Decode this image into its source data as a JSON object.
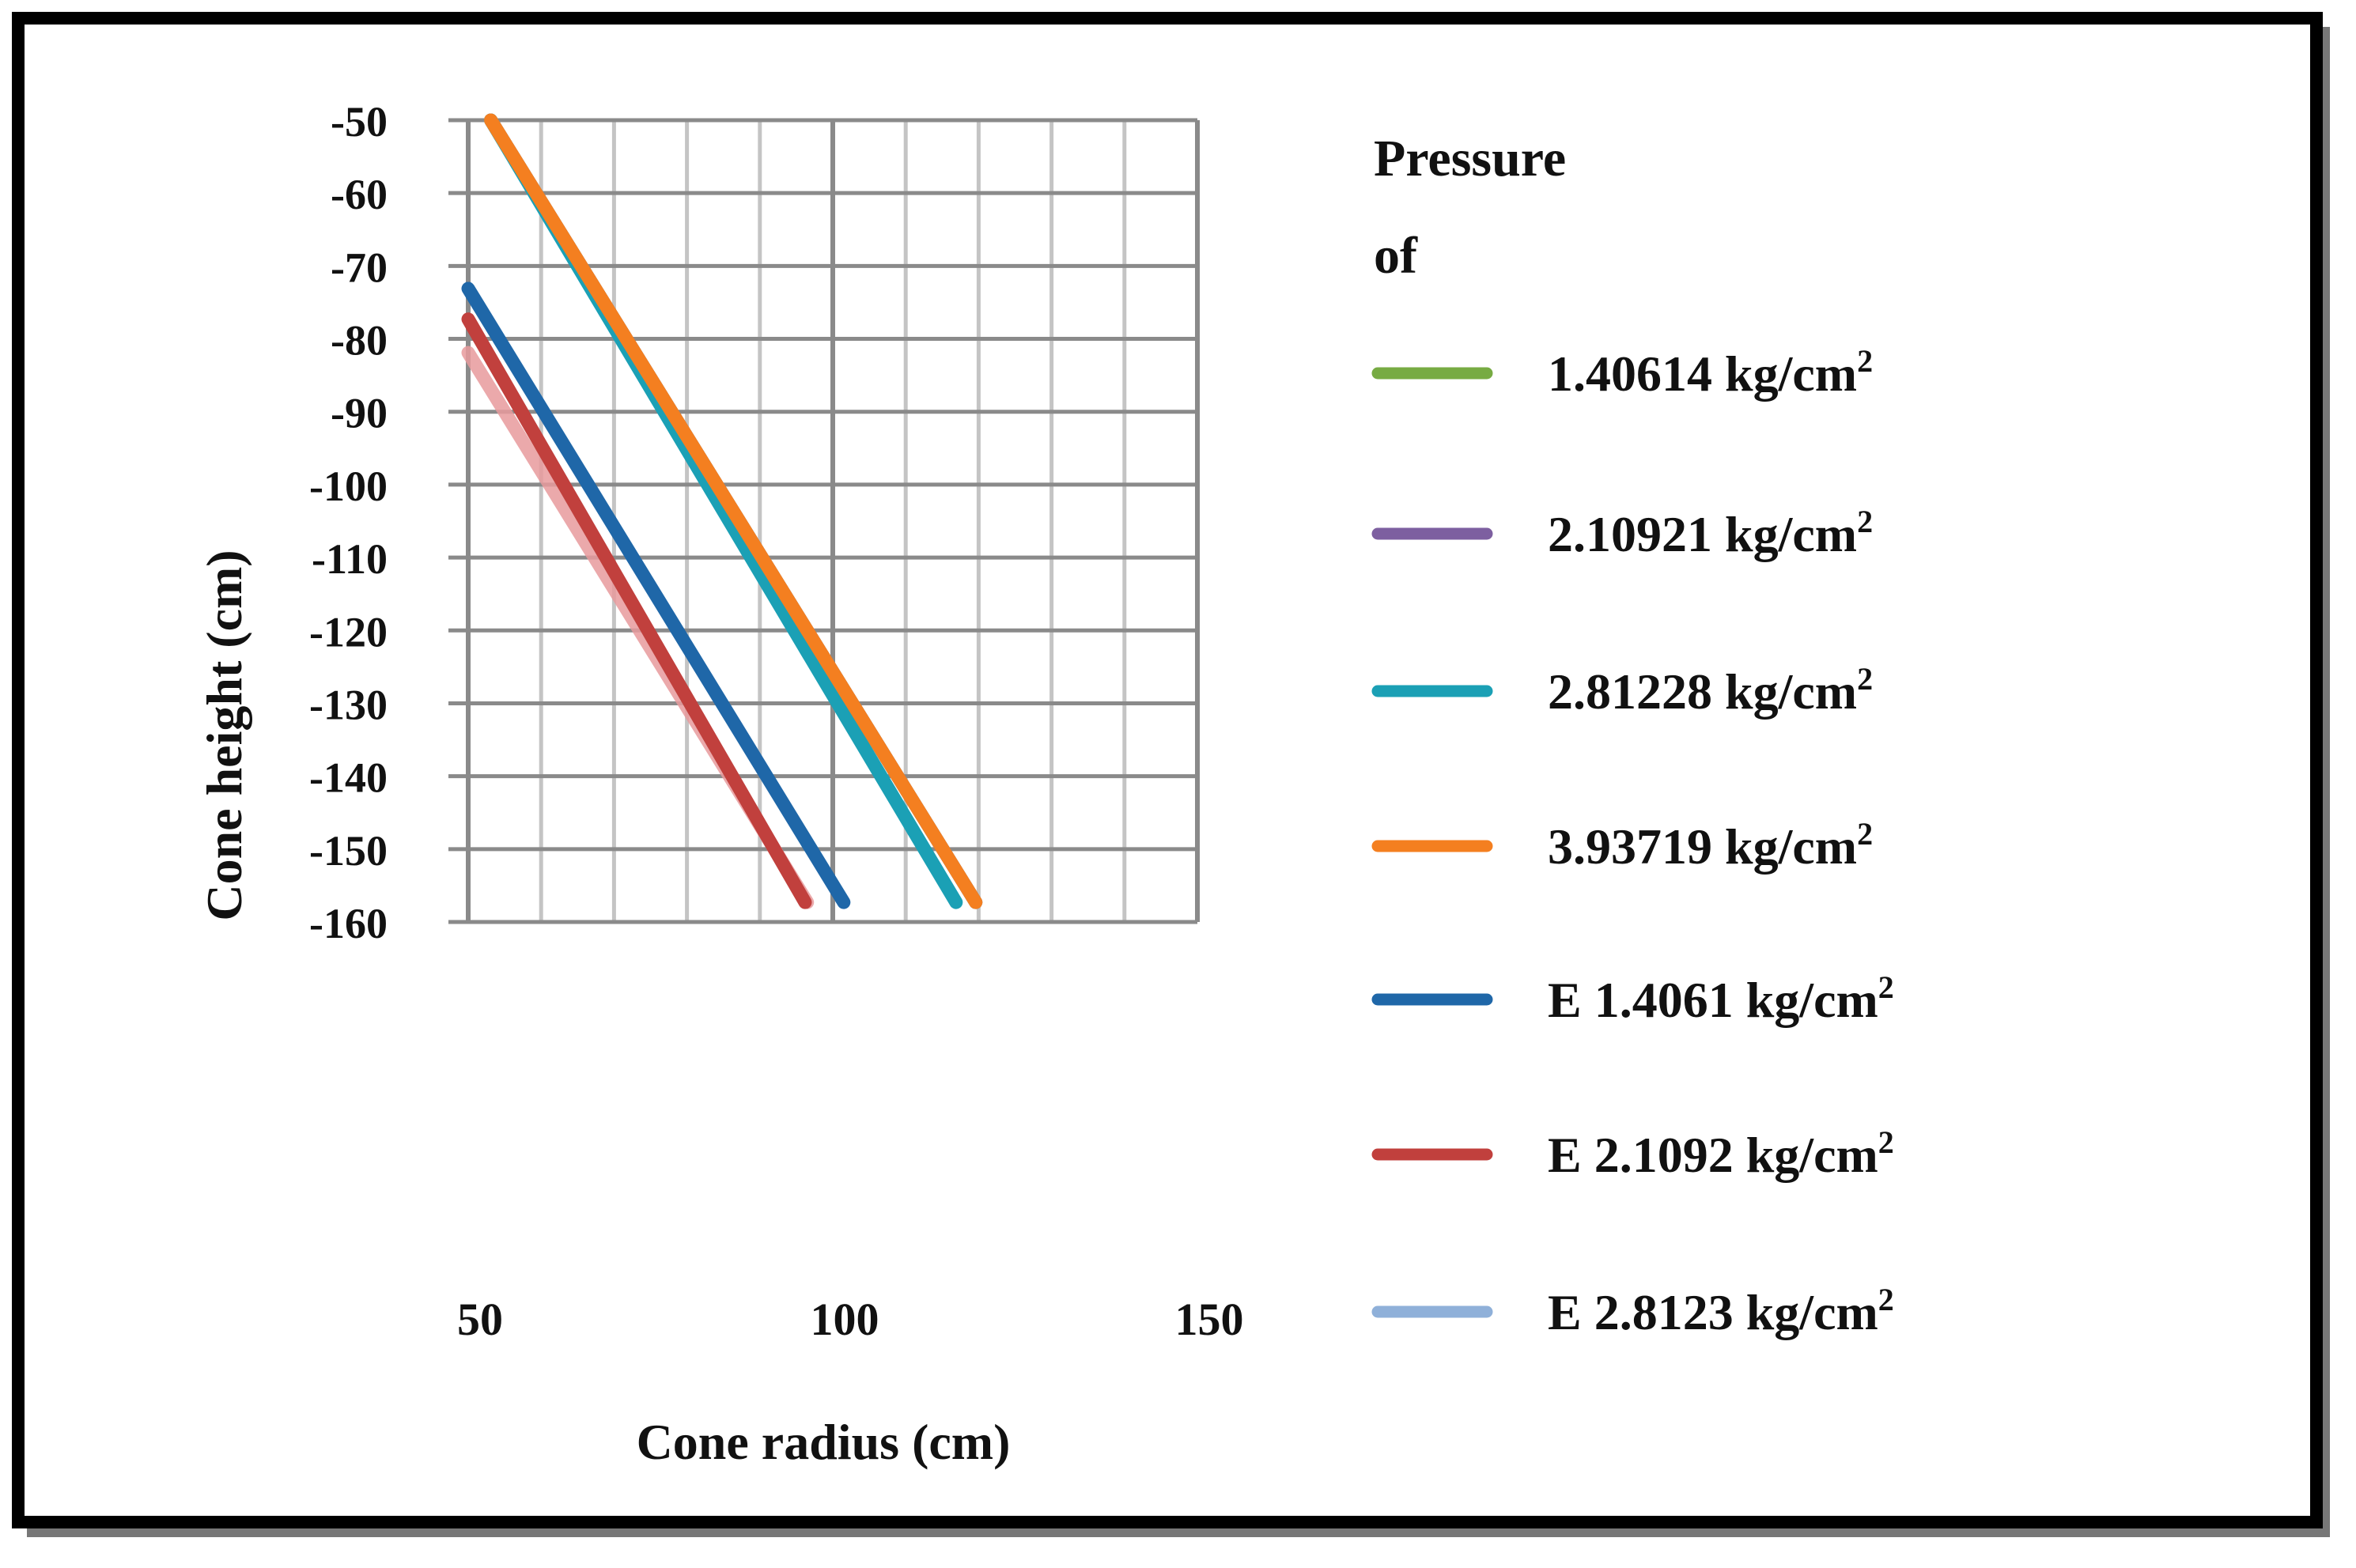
{
  "chart_data": {
    "type": "line",
    "title": "",
    "xlabel": "Cone radius (cm)",
    "ylabel": "Cone height (cm)",
    "xlim": [
      50,
      150
    ],
    "ylim": [
      -160,
      -50
    ],
    "xticks": [
      50,
      100,
      150
    ],
    "xtick_labels": [
      "50",
      "100",
      "150"
    ],
    "yticks": [
      -50,
      -60,
      -70,
      -80,
      -90,
      -100,
      -110,
      -120,
      -130,
      -140,
      -150,
      -160
    ],
    "ytick_labels": [
      "-50",
      "-60",
      "-70",
      "-80",
      "-90",
      "-100",
      "-110",
      "-120",
      "-130",
      "-140",
      "-150",
      "-160"
    ],
    "grid": true,
    "legend_title_lines": [
      "Pressure",
      "of"
    ],
    "legend_position": "right",
    "series": [
      {
        "name": "1.40614 kg/cm",
        "sup": "2",
        "color": "#77ab43",
        "legend_color": "#77ab43",
        "x": [
          53.1,
          119.6
        ],
        "y": [
          -50,
          -157.3
        ]
      },
      {
        "name": "2.10921 kg/cm",
        "sup": "2",
        "color": "#7d5fa0",
        "legend_color": "#7d5fa0",
        "x": [
          53.1,
          119.6
        ],
        "y": [
          -50,
          -157.3
        ]
      },
      {
        "name": "2.81228 kg/cm",
        "sup": "2",
        "color": "#1ba0b5",
        "legend_color": "#1ba0b5",
        "x": [
          53.1,
          116.9
        ],
        "y": [
          -50,
          -157.3
        ]
      },
      {
        "name": "3.93719 kg/cm",
        "sup": "2",
        "color": "#f47f20",
        "legend_color": "#f47f20",
        "x": [
          53.1,
          119.6
        ],
        "y": [
          -50,
          -157.3
        ]
      },
      {
        "name": "E 1.4061 kg/cm",
        "sup": "2",
        "color": "#1f67a8",
        "legend_color": "#1f67a8",
        "x": [
          50,
          101.5
        ],
        "y": [
          -73.1,
          -157.3
        ]
      },
      {
        "name": "E 2.1092 kg/cm",
        "sup": "2",
        "color": "#c1403d",
        "legend_color": "#c1403d",
        "x": [
          50,
          96.2
        ],
        "y": [
          -77.3,
          -157.3
        ]
      },
      {
        "name": "E 2.8123 kg/cm",
        "sup": "2",
        "color": "#e89a9c",
        "legend_color": "#8fb0d9",
        "x": [
          50,
          96.5
        ],
        "y": [
          -81.9,
          -157.3
        ]
      }
    ]
  }
}
